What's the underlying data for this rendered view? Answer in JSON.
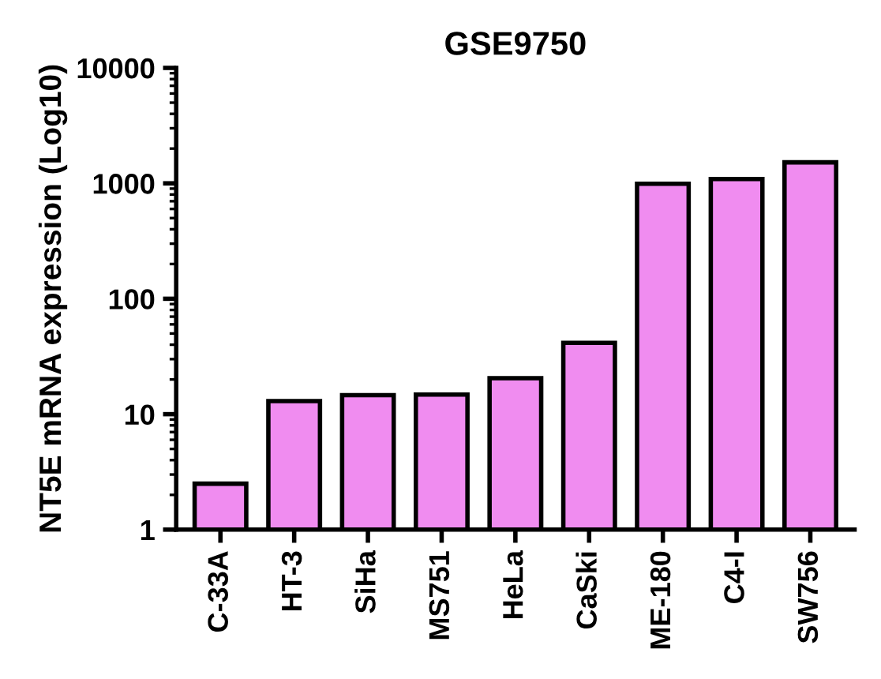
{
  "chart_data": {
    "type": "bar",
    "title": "GSE9750",
    "ylabel": "NT5E mRNA expression (Log10)",
    "categories": [
      "C-33A",
      "HT-3",
      "SiHa",
      "MS751",
      "HeLa",
      "CaSki",
      "ME-180",
      "C4-I",
      "SW756"
    ],
    "values": [
      2.5,
      13,
      14.6,
      14.8,
      20.5,
      41.5,
      990,
      1090,
      1520
    ],
    "color": "#f08cf0",
    "log": "y",
    "ylim": [
      1,
      10000
    ],
    "yticks": [
      1,
      10,
      100,
      1000,
      10000
    ],
    "grid": false,
    "legend": false
  }
}
